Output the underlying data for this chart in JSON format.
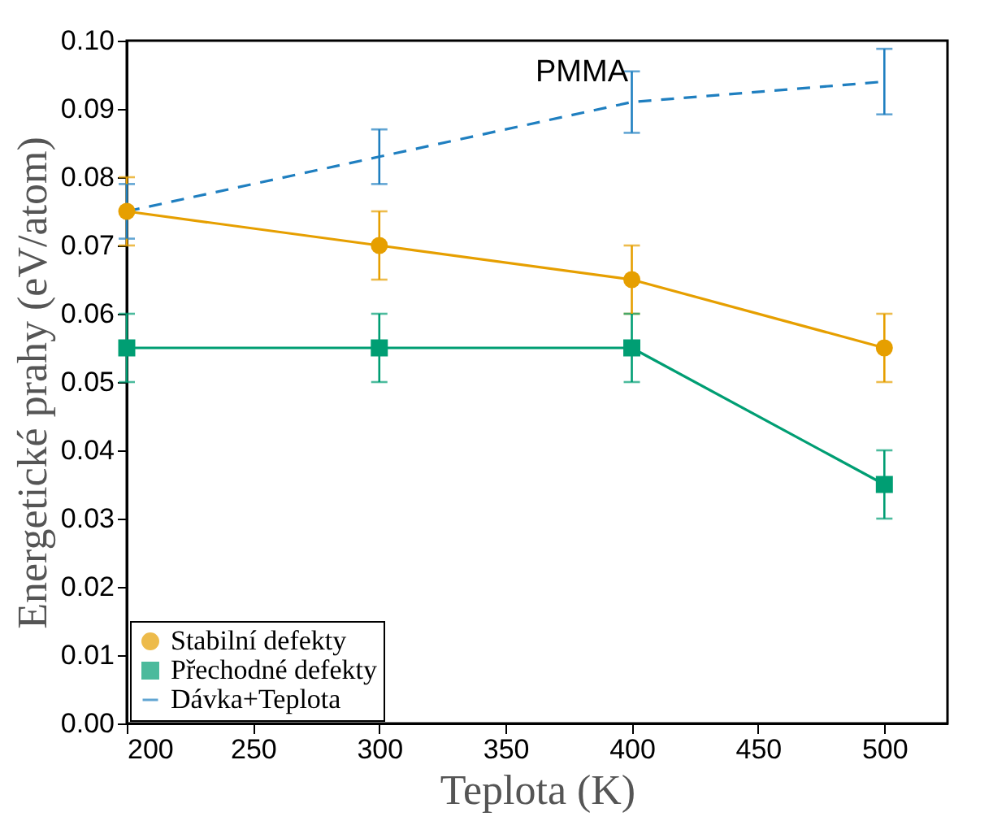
{
  "chart_data": {
    "type": "line",
    "xlabel": "Teplota (K)",
    "ylabel": "Energetické prahy (eV/atom)",
    "annotations": [
      "PMMA"
    ],
    "x": [
      200,
      300,
      400,
      500
    ],
    "series": [
      {
        "name": "Stabilní defekty",
        "color": "#e69f00",
        "values": [
          0.075,
          0.07,
          0.065,
          0.055
        ],
        "errors": [
          0.005,
          0.005,
          0.005,
          0.005
        ],
        "marker": "circle",
        "line_style": "solid"
      },
      {
        "name": "Přechodné defekty",
        "color": "#009e73",
        "values": [
          0.055,
          0.055,
          0.055,
          0.035
        ],
        "errors": [
          0.005,
          0.005,
          0.005,
          0.005
        ],
        "marker": "square",
        "line_style": "solid"
      },
      {
        "name": "Dávka+Teplota",
        "color": "#1f7fc0",
        "values": [
          0.075,
          0.083,
          0.091,
          0.094
        ],
        "errors": [
          0.004,
          0.004,
          0.0045,
          0.0048
        ],
        "marker": "none",
        "line_style": "dashed"
      }
    ],
    "xlim": [
      200,
      525
    ],
    "xticks": [
      200,
      250,
      300,
      350,
      400,
      450,
      500
    ],
    "ylim": [
      0,
      0.1
    ],
    "yticks": [
      {
        "value": 0,
        "label": "0.00"
      },
      {
        "value": 0.01,
        "label": "0.01"
      },
      {
        "value": 0.02,
        "label": "0.02"
      },
      {
        "value": 0.03,
        "label": "0.03"
      },
      {
        "value": 0.04,
        "label": "0.04"
      },
      {
        "value": 0.05,
        "label": "0.05"
      },
      {
        "value": 0.06,
        "label": "0.06"
      },
      {
        "value": 0.07,
        "label": "0.07"
      },
      {
        "value": 0.08,
        "label": "0.08"
      },
      {
        "value": 0.09,
        "label": "0.09"
      },
      {
        "value": 0.1,
        "label": "0.10"
      }
    ],
    "grid": false,
    "legend": "bottom left"
  }
}
